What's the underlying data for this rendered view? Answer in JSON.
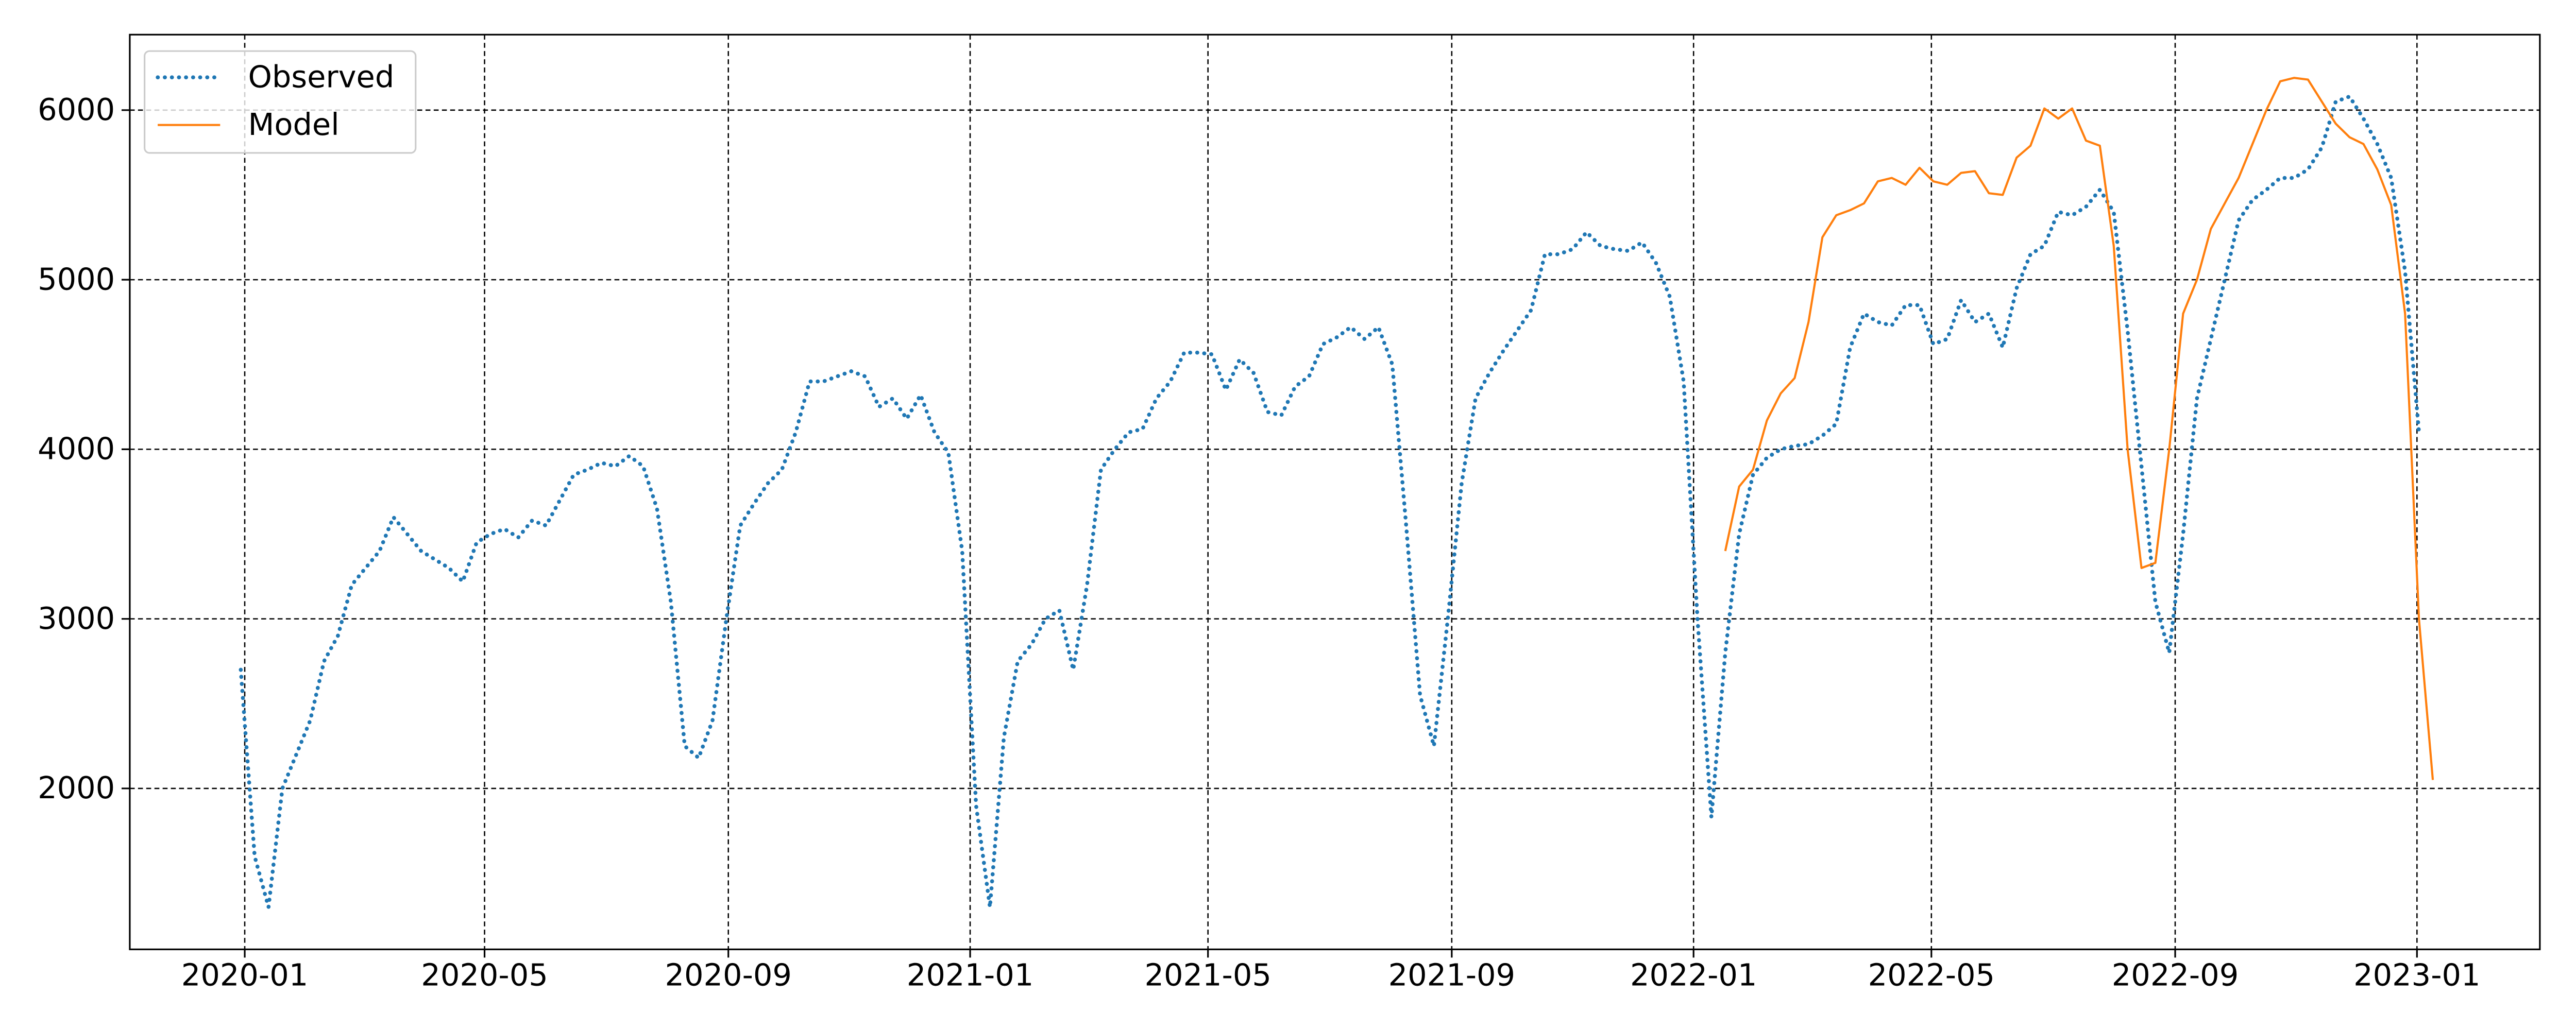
{
  "chart_data": {
    "type": "line",
    "x": [
      18260,
      18267,
      18274,
      18281,
      18288,
      18295,
      18302,
      18309,
      18316,
      18323,
      18330,
      18337,
      18344,
      18351,
      18358,
      18365,
      18372,
      18379,
      18386,
      18393,
      18400,
      18407,
      18414,
      18421,
      18428,
      18435,
      18442,
      18449,
      18456,
      18463,
      18470,
      18477,
      18484,
      18491,
      18498,
      18505,
      18512,
      18519,
      18526,
      18533,
      18540,
      18547,
      18554,
      18561,
      18568,
      18575,
      18582,
      18589,
      18596,
      18603,
      18610,
      18617,
      18624,
      18631,
      18638,
      18645,
      18652,
      18659,
      18666,
      18673,
      18680,
      18687,
      18694,
      18701,
      18708,
      18715,
      18722,
      18729,
      18736,
      18743,
      18750,
      18757,
      18764,
      18771,
      18778,
      18785,
      18792,
      18799,
      18806,
      18813,
      18820,
      18827,
      18834,
      18841,
      18848,
      18855,
      18862,
      18869,
      18876,
      18883,
      18890,
      18897,
      18904,
      18911,
      18918,
      18925,
      18932,
      18939,
      18946,
      18953,
      18960,
      18967,
      18974,
      18981,
      18988,
      18995,
      19002,
      19009,
      19016,
      19023,
      19030,
      19037,
      19044,
      19051,
      19058,
      19065,
      19072,
      19079,
      19086,
      19093,
      19100,
      19107,
      19114,
      19121,
      19128,
      19135,
      19142,
      19149,
      19156,
      19163,
      19170,
      19177,
      19184,
      19191,
      19198,
      19205,
      19212,
      19219,
      19226,
      19233,
      19240,
      19247,
      19254,
      19261,
      19268,
      19275,
      19282,
      19289,
      19296,
      19303,
      19310,
      19317,
      19324,
      19331,
      19338,
      19345,
      19352,
      19359,
      19366
    ],
    "series": [
      {
        "name": "Observed",
        "color": "#1f77b4",
        "style": "dotted",
        "values": [
          2700,
          1600,
          1300,
          2000,
          2200,
          2400,
          2750,
          2900,
          3200,
          3300,
          3400,
          3600,
          3500,
          3400,
          3350,
          3300,
          3220,
          3450,
          3500,
          3530,
          3480,
          3580,
          3550,
          3700,
          3850,
          3880,
          3920,
          3900,
          3960,
          3900,
          3650,
          3100,
          2250,
          2180,
          2400,
          3000,
          3550,
          3680,
          3800,
          3880,
          4100,
          4400,
          4400,
          4430,
          4460,
          4430,
          4250,
          4300,
          4180,
          4320,
          4100,
          3980,
          3400,
          1900,
          1300,
          2300,
          2750,
          2850,
          3000,
          3050,
          2700,
          3200,
          3880,
          4000,
          4100,
          4120,
          4300,
          4400,
          4570,
          4570,
          4560,
          4350,
          4530,
          4450,
          4220,
          4200,
          4370,
          4430,
          4620,
          4660,
          4720,
          4650,
          4720,
          4500,
          3550,
          2550,
          2250,
          3000,
          3800,
          4300,
          4450,
          4580,
          4700,
          4820,
          5150,
          5150,
          5180,
          5280,
          5200,
          5180,
          5170,
          5220,
          5100,
          4900,
          4400,
          3000,
          1830,
          2800,
          3500,
          3850,
          3950,
          4000,
          4020,
          4030,
          4080,
          4150,
          4600,
          4800,
          4750,
          4730,
          4850,
          4850,
          4620,
          4650,
          4880,
          4750,
          4800,
          4600,
          4950,
          5150,
          5200,
          5400,
          5380,
          5430,
          5530,
          5400,
          4700,
          3900,
          3100,
          2800,
          3500,
          4300,
          4650,
          5000,
          5350,
          5470,
          5530,
          5600,
          5600,
          5650,
          5780,
          6050,
          6080,
          5950,
          5800,
          5600,
          5050,
          4100,
          null
        ]
      },
      {
        "name": "Model",
        "color": "#ff7f0e",
        "style": "solid",
        "values": [
          null,
          null,
          null,
          null,
          null,
          null,
          null,
          null,
          null,
          null,
          null,
          null,
          null,
          null,
          null,
          null,
          null,
          null,
          null,
          null,
          null,
          null,
          null,
          null,
          null,
          null,
          null,
          null,
          null,
          null,
          null,
          null,
          null,
          null,
          null,
          null,
          null,
          null,
          null,
          null,
          null,
          null,
          null,
          null,
          null,
          null,
          null,
          null,
          null,
          null,
          null,
          null,
          null,
          null,
          null,
          null,
          null,
          null,
          null,
          null,
          null,
          null,
          null,
          null,
          null,
          null,
          null,
          null,
          null,
          null,
          null,
          null,
          null,
          null,
          null,
          null,
          null,
          null,
          null,
          null,
          null,
          null,
          null,
          null,
          null,
          null,
          null,
          null,
          null,
          null,
          null,
          null,
          null,
          null,
          null,
          null,
          null,
          null,
          null,
          null,
          null,
          null,
          null,
          null,
          null,
          null,
          null,
          3400,
          3780,
          3880,
          4170,
          4330,
          4420,
          4750,
          5250,
          5380,
          5410,
          5450,
          5580,
          5600,
          5560,
          5660,
          5580,
          5560,
          5630,
          5640,
          5510,
          5500,
          5720,
          5790,
          6010,
          5950,
          6010,
          5820,
          5790,
          5200,
          4000,
          3300,
          3330,
          4000,
          4800,
          5000,
          5300,
          5450,
          5600,
          5800,
          6000,
          6170,
          6190,
          6180,
          6050,
          5920,
          5840,
          5800,
          5650,
          5440,
          4800,
          3000,
          2050
        ]
      }
    ],
    "xlim": [
      18204,
      19420
    ],
    "xticks": [
      {
        "value": 18262,
        "label": "2020-01"
      },
      {
        "value": 18383,
        "label": "2020-05"
      },
      {
        "value": 18506,
        "label": "2020-09"
      },
      {
        "value": 18628,
        "label": "2021-01"
      },
      {
        "value": 18748,
        "label": "2021-05"
      },
      {
        "value": 18871,
        "label": "2021-09"
      },
      {
        "value": 18993,
        "label": "2022-01"
      },
      {
        "value": 19113,
        "label": "2022-05"
      },
      {
        "value": 19236,
        "label": "2022-09"
      },
      {
        "value": 19358,
        "label": "2023-01"
      }
    ],
    "ylim": [
      1051,
      6445
    ],
    "yticks": [
      2000,
      3000,
      4000,
      5000,
      6000
    ],
    "grid": true,
    "legend": "upper left"
  }
}
